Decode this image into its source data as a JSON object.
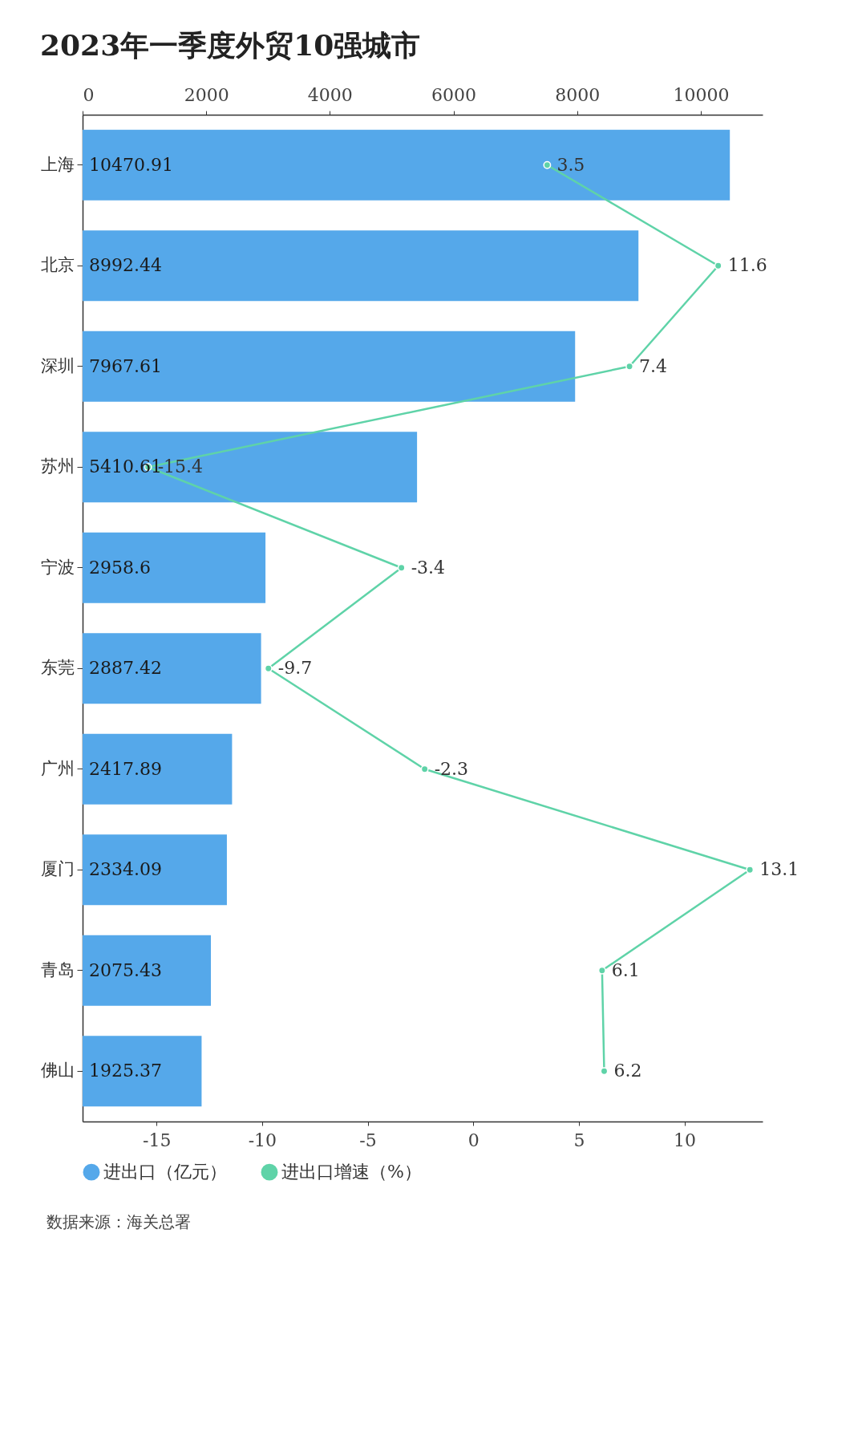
{
  "chart_data": {
    "type": "bar",
    "title": "2023年一季度外贸10强城市",
    "orientation": "horizontal",
    "categories": [
      "上海",
      "北京",
      "深圳",
      "苏州",
      "宁波",
      "东莞",
      "广州",
      "厦门",
      "青岛",
      "佛山"
    ],
    "series": [
      {
        "name": "进出口（亿元）",
        "axis": "x2",
        "color": "#55a8ea",
        "values": [
          10470.91,
          8992.44,
          7967.61,
          5410.61,
          2958.6,
          2887.42,
          2417.89,
          2334.09,
          2075.43,
          1925.37
        ]
      },
      {
        "name": "进出口增速（%）",
        "type": "line",
        "color": "#5fd3a8",
        "marker": "circle",
        "values": [
          3.5,
          11.6,
          7.4,
          -15.4,
          -3.4,
          -9.7,
          -2.3,
          13.1,
          6.1,
          6.2
        ]
      }
    ],
    "xlim": [
      -18.5,
      13.7
    ],
    "xticks": [
      -15,
      -10,
      -5,
      0,
      5,
      10
    ],
    "x2lim": [
      0,
      11000
    ],
    "x2ticks": [
      0,
      2000,
      4000,
      6000,
      8000,
      10000
    ],
    "data_labels": true,
    "legend": "bottom",
    "annotations": [
      "数据来源：海关总署"
    ]
  }
}
